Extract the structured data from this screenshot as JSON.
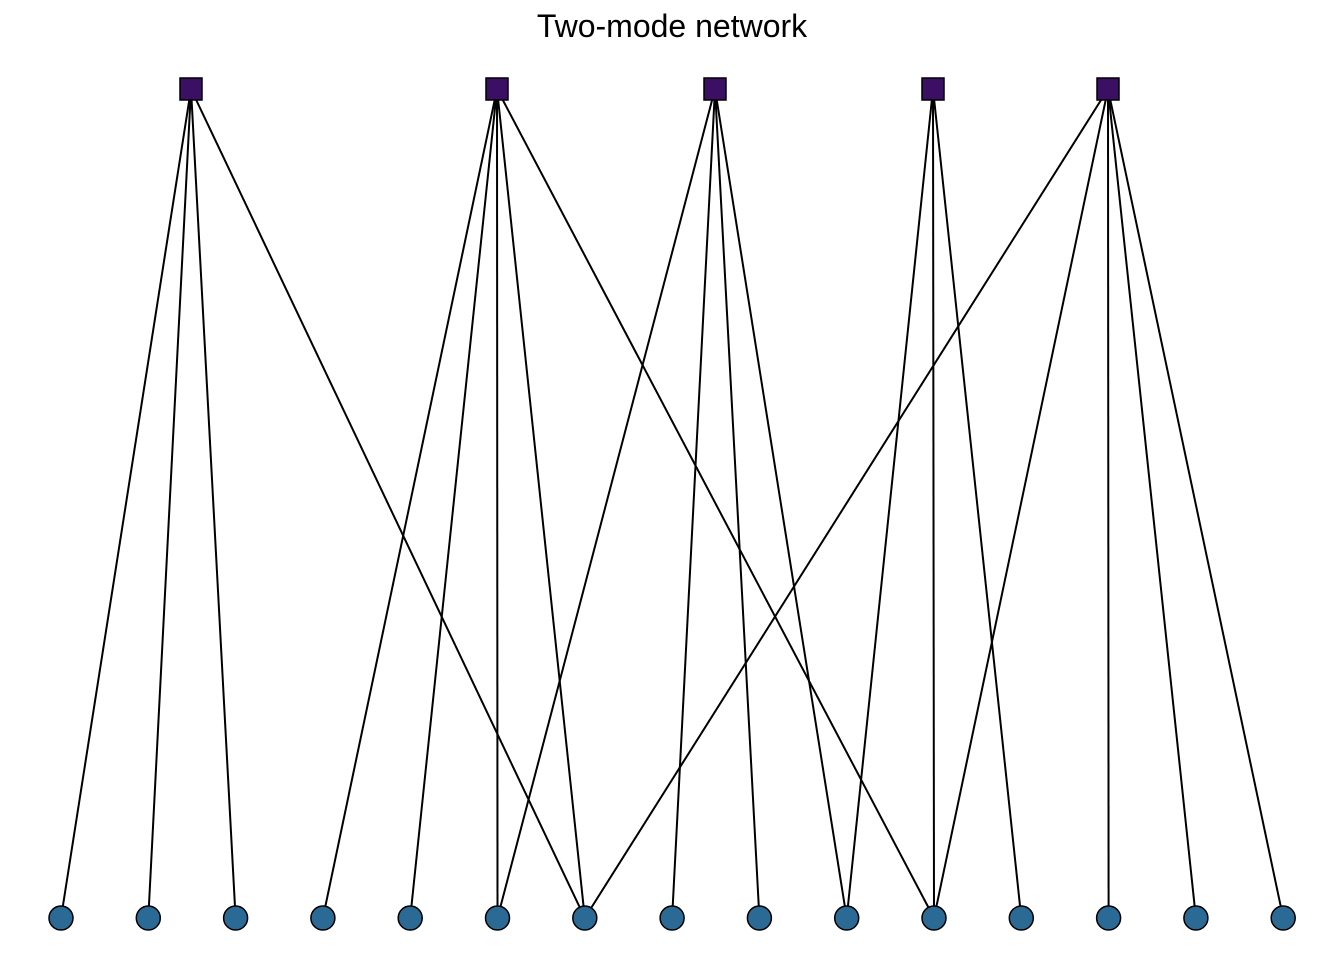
{
  "title": "Two-mode network",
  "colors": {
    "mode1_node": "#3b0f63",
    "mode2_node": "#2c6a96",
    "node_border": "#000000",
    "edge": "#000000",
    "background": "#ffffff"
  },
  "node_shapes": {
    "mode1": "square",
    "mode2": "circle"
  },
  "mode1_count": 5,
  "mode2_count": 15,
  "edges": [
    [
      0,
      0
    ],
    [
      0,
      1
    ],
    [
      0,
      2
    ],
    [
      0,
      6
    ],
    [
      1,
      3
    ],
    [
      1,
      4
    ],
    [
      1,
      5
    ],
    [
      1,
      6
    ],
    [
      1,
      10
    ],
    [
      2,
      5
    ],
    [
      2,
      7
    ],
    [
      2,
      8
    ],
    [
      2,
      9
    ],
    [
      3,
      10
    ],
    [
      3,
      11
    ],
    [
      3,
      9
    ],
    [
      4,
      6
    ],
    [
      4,
      10
    ],
    [
      4,
      12
    ],
    [
      4,
      13
    ],
    [
      4,
      14
    ]
  ]
}
